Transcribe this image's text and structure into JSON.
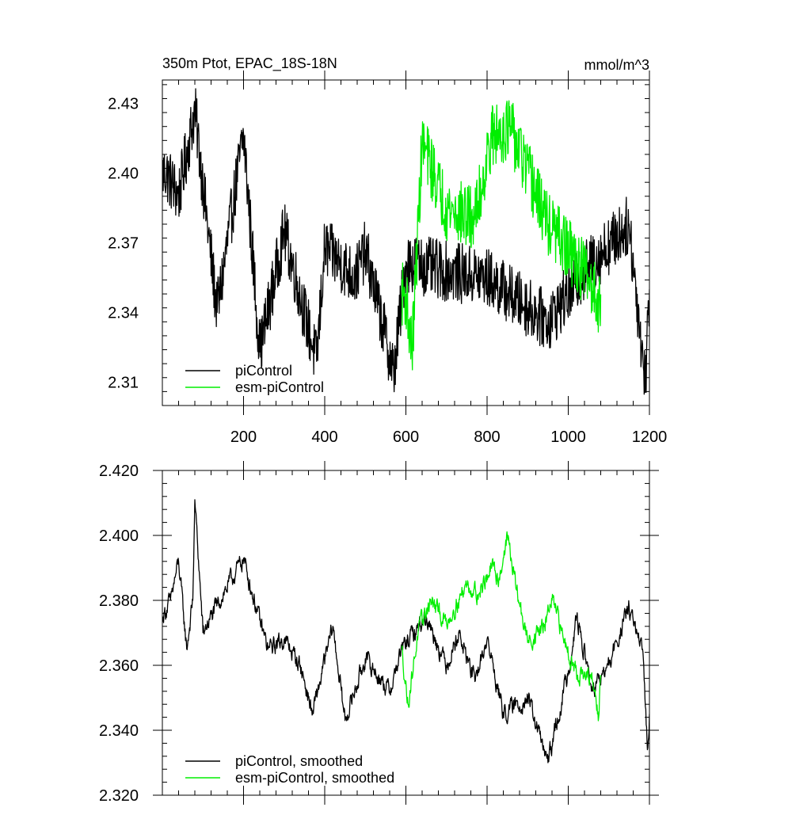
{
  "chart_data": [
    {
      "type": "line",
      "title": "350m Ptot, EPAC_18S-18N",
      "units": "mmol/m^3",
      "xlabel": "",
      "ylabel": "",
      "xlim": [
        0,
        1200
      ],
      "ylim": [
        2.3,
        2.44
      ],
      "xticks": [
        200,
        400,
        600,
        800,
        1000,
        1200
      ],
      "xtick_labels": [
        "200",
        "400",
        "600",
        "800",
        "1000",
        "1200"
      ],
      "yticks": [
        2.31,
        2.34,
        2.37,
        2.4,
        2.43
      ],
      "ytick_labels": [
        "2.31",
        "2.34",
        "2.37",
        "2.40",
        "2.43"
      ],
      "grid": false,
      "legend_position": "bottom-left",
      "series": [
        {
          "name": "piControl",
          "color": "#000000",
          "x_range": [
            1,
            1200
          ],
          "mean": 2.368,
          "noise": 0.013,
          "anchors": [
            [
              10,
              2.4
            ],
            [
              40,
              2.39
            ],
            [
              80,
              2.427
            ],
            [
              100,
              2.395
            ],
            [
              135,
              2.34
            ],
            [
              200,
              2.417
            ],
            [
              240,
              2.323
            ],
            [
              300,
              2.375
            ],
            [
              380,
              2.319
            ],
            [
              400,
              2.368
            ],
            [
              475,
              2.355
            ],
            [
              500,
              2.367
            ],
            [
              570,
              2.314
            ],
            [
              600,
              2.362
            ],
            [
              690,
              2.358
            ],
            [
              800,
              2.355
            ],
            [
              950,
              2.336
            ],
            [
              1050,
              2.36
            ],
            [
              1150,
              2.378
            ],
            [
              1190,
              2.31
            ],
            [
              1200,
              2.35
            ]
          ]
        },
        {
          "name": "esm-piControl",
          "color": "#00ee00",
          "x_range": [
            590,
            1080
          ],
          "mean": 2.37,
          "noise": 0.014,
          "anchors": [
            [
              600,
              2.348
            ],
            [
              615,
              2.322
            ],
            [
              640,
              2.413
            ],
            [
              700,
              2.385
            ],
            [
              770,
              2.38
            ],
            [
              810,
              2.415
            ],
            [
              855,
              2.42
            ],
            [
              950,
              2.378
            ],
            [
              1050,
              2.355
            ],
            [
              1075,
              2.345
            ]
          ]
        }
      ]
    },
    {
      "type": "line",
      "title": "",
      "xlabel": "",
      "ylabel": "",
      "xlim": [
        0,
        1200
      ],
      "ylim": [
        2.32,
        2.42
      ],
      "xticks": [
        200,
        400,
        600,
        800,
        1000,
        1200
      ],
      "yticks": [
        2.32,
        2.34,
        2.36,
        2.38,
        2.4,
        2.42
      ],
      "ytick_labels": [
        "2.320",
        "2.340",
        "2.360",
        "2.380",
        "2.400",
        "2.420"
      ],
      "grid": false,
      "legend_position": "bottom-left",
      "series": [
        {
          "name": "piControl, smoothed",
          "color": "#000000",
          "x_range": [
            1,
            1200
          ],
          "noise": 0.004,
          "anchors": [
            [
              1,
              2.375
            ],
            [
              20,
              2.38
            ],
            [
              40,
              2.392
            ],
            [
              60,
              2.365
            ],
            [
              75,
              2.38
            ],
            [
              80,
              2.411
            ],
            [
              100,
              2.37
            ],
            [
              150,
              2.382
            ],
            [
              200,
              2.393
            ],
            [
              230,
              2.378
            ],
            [
              260,
              2.365
            ],
            [
              300,
              2.368
            ],
            [
              340,
              2.36
            ],
            [
              370,
              2.345
            ],
            [
              420,
              2.372
            ],
            [
              450,
              2.343
            ],
            [
              500,
              2.362
            ],
            [
              560,
              2.352
            ],
            [
              590,
              2.365
            ],
            [
              650,
              2.375
            ],
            [
              700,
              2.36
            ],
            [
              730,
              2.37
            ],
            [
              770,
              2.355
            ],
            [
              800,
              2.368
            ],
            [
              840,
              2.345
            ],
            [
              900,
              2.35
            ],
            [
              950,
              2.33
            ],
            [
              1000,
              2.358
            ],
            [
              1020,
              2.375
            ],
            [
              1060,
              2.352
            ],
            [
              1100,
              2.36
            ],
            [
              1150,
              2.378
            ],
            [
              1185,
              2.362
            ],
            [
              1195,
              2.334
            ],
            [
              1200,
              2.345
            ]
          ]
        },
        {
          "name": "esm-piControl, smoothed",
          "color": "#00ee00",
          "x_range": [
            590,
            1080
          ],
          "noise": 0.004,
          "anchors": [
            [
              590,
              2.365
            ],
            [
              605,
              2.348
            ],
            [
              630,
              2.37
            ],
            [
              660,
              2.38
            ],
            [
              700,
              2.373
            ],
            [
              750,
              2.385
            ],
            [
              780,
              2.382
            ],
            [
              810,
              2.39
            ],
            [
              830,
              2.387
            ],
            [
              850,
              2.4
            ],
            [
              870,
              2.385
            ],
            [
              900,
              2.367
            ],
            [
              940,
              2.372
            ],
            [
              960,
              2.38
            ],
            [
              990,
              2.368
            ],
            [
              1020,
              2.358
            ],
            [
              1060,
              2.355
            ],
            [
              1075,
              2.344
            ],
            [
              1080,
              2.357
            ]
          ]
        }
      ]
    }
  ]
}
